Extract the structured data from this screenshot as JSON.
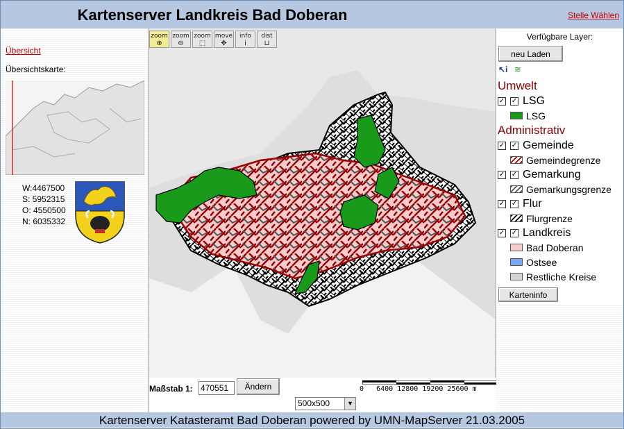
{
  "header": {
    "title": "Kartenserver Landkreis Bad Doberan",
    "change_link": "Stelle Wählen"
  },
  "left": {
    "overview_link": "Übersicht",
    "overview_label": "Übersichtskarte:",
    "coords": {
      "w": "W:4467500",
      "s": "S: 5952315",
      "o": "O: 4550500",
      "n": "N: 6035332"
    }
  },
  "toolbar": [
    {
      "top": "zoom",
      "glyph": "⊕",
      "name": "zoom-in"
    },
    {
      "top": "zoom",
      "glyph": "⊖",
      "name": "zoom-out"
    },
    {
      "top": "zoom",
      "glyph": "⬚",
      "name": "zoom-box"
    },
    {
      "top": "move",
      "glyph": "✥",
      "name": "move"
    },
    {
      "top": "info",
      "glyph": "i",
      "name": "info"
    },
    {
      "top": "dist",
      "glyph": "⊔",
      "name": "distance"
    }
  ],
  "scale": {
    "label": "Maßstab 1:",
    "value": "470551",
    "button": "Ändern",
    "ticks": "0   6400 12800 19200 25600 m",
    "size_option": "500x500"
  },
  "right": {
    "header": "Verfügbare Layer:",
    "reload_button": "neu Laden",
    "info_button": "Karteninfo",
    "groups": [
      {
        "name": "Umwelt",
        "layers": [
          {
            "name": "LSG",
            "legend": [
              {
                "label": "LSG",
                "color": "#1a9a1a"
              }
            ]
          }
        ]
      },
      {
        "name": "Administrativ",
        "layers": [
          {
            "name": "Gemeinde",
            "legend": [
              {
                "label": "Gemeindegrenze",
                "color": "#a00000"
              }
            ]
          },
          {
            "name": "Gemarkung",
            "legend": [
              {
                "label": "Gemarkungsgrenze",
                "color": "#555555"
              }
            ]
          },
          {
            "name": "Flur",
            "legend": [
              {
                "label": "Flurgrenze",
                "color": "#000000"
              }
            ]
          },
          {
            "name": "Landkreis",
            "legend": [
              {
                "label": "Bad Doberan",
                "color": "#f6cccc"
              },
              {
                "label": "Ostsee",
                "color": "#7aa6f0"
              },
              {
                "label": "Restliche Kreise",
                "color": "#d6d6d6"
              }
            ]
          }
        ]
      }
    ]
  },
  "footer": {
    "text": "Kartenserver Katasteramt Bad Doberan powered by UMN-MapServer 21.03.2005"
  },
  "colors": {
    "header_bg": "#b6c8e1",
    "link": "#c00000",
    "group": "#8b0000",
    "lsg": "#1a9a1a"
  }
}
